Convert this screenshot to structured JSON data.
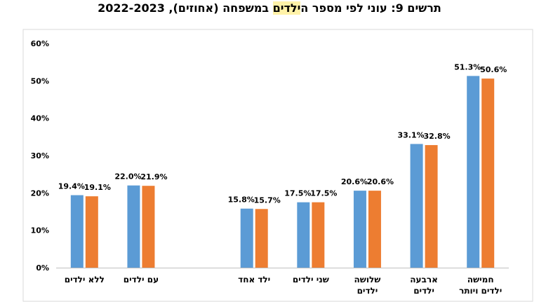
{
  "title": {
    "before": "תרשים 9: עוני לפי מספר ה",
    "highlight": "ילדים",
    "after": " במשפחה (אחוזים), 2022-2023"
  },
  "colors": {
    "series_2022": "#5b9bd5",
    "series_2023": "#ed7d31"
  },
  "chart_data": {
    "type": "bar",
    "categories": [
      [
        "ללא ילדים"
      ],
      [
        "עם ילדים"
      ],
      [
        ""
      ],
      [
        "ילד אחד"
      ],
      [
        "שני ילדים"
      ],
      [
        "שלושה",
        "ילדים"
      ],
      [
        "ארבעה",
        "ילדים"
      ],
      [
        "חמישה",
        "ילדים ויותר"
      ]
    ],
    "series": [
      {
        "values": [
          19.4,
          22.0,
          null,
          15.8,
          17.5,
          20.6,
          33.1,
          51.3
        ],
        "labels": [
          "19.4%",
          "22.0%",
          "",
          "15.8%",
          "17.5%",
          "20.6%",
          "33.1%",
          "51.3%"
        ]
      },
      {
        "values": [
          19.1,
          21.9,
          null,
          15.7,
          17.5,
          20.6,
          32.8,
          50.6
        ],
        "labels": [
          "19.1%",
          "21.9%",
          "",
          "15.7%",
          "17.5%",
          "20.6%",
          "32.8%",
          "50.6%"
        ]
      }
    ],
    "ylim": [
      0,
      60
    ],
    "yticks": [
      "0%",
      "10%",
      "20%",
      "30%",
      "40%",
      "50%",
      "60%"
    ],
    "grid": false,
    "legend": "none"
  }
}
